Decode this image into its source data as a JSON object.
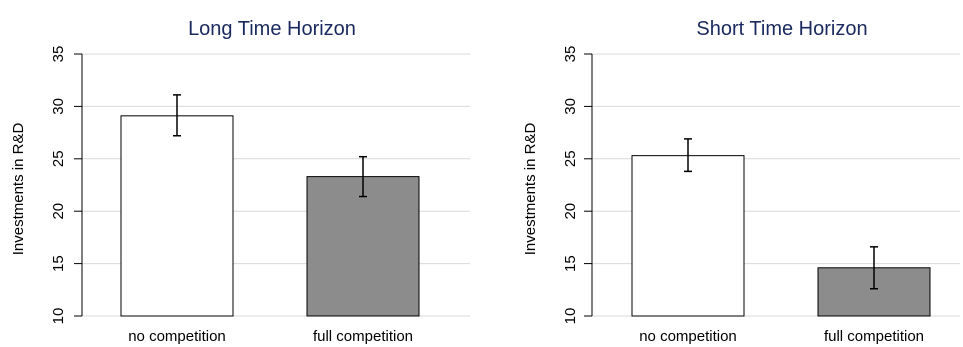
{
  "chart_data": [
    {
      "type": "bar",
      "title": "Long Time Horizon",
      "ylabel": "Investments in R&D",
      "xlabel": "",
      "categories": [
        "no competition",
        "full competition"
      ],
      "values": [
        29.1,
        23.3
      ],
      "error_low": [
        27.2,
        21.4
      ],
      "error_high": [
        31.1,
        25.2
      ],
      "bar_colors": [
        "#ffffff",
        "#8c8c8c"
      ],
      "ylim": [
        10,
        35
      ],
      "yticks": [
        "10",
        "15",
        "20",
        "25",
        "30",
        "35"
      ],
      "grid": true
    },
    {
      "type": "bar",
      "title": "Short Time Horizon",
      "ylabel": "Investments in R&D",
      "xlabel": "",
      "categories": [
        "no competition",
        "full competition"
      ],
      "values": [
        25.3,
        14.6
      ],
      "error_low": [
        23.8,
        12.6
      ],
      "error_high": [
        26.9,
        16.6
      ],
      "bar_colors": [
        "#ffffff",
        "#8c8c8c"
      ],
      "ylim": [
        10,
        35
      ],
      "yticks": [
        "10",
        "15",
        "20",
        "25",
        "30",
        "35"
      ],
      "grid": true
    }
  ],
  "colors": {
    "title": "#1a2a5e",
    "grid": "#d9d9d9",
    "axis": "#000000",
    "text": "#000000"
  }
}
